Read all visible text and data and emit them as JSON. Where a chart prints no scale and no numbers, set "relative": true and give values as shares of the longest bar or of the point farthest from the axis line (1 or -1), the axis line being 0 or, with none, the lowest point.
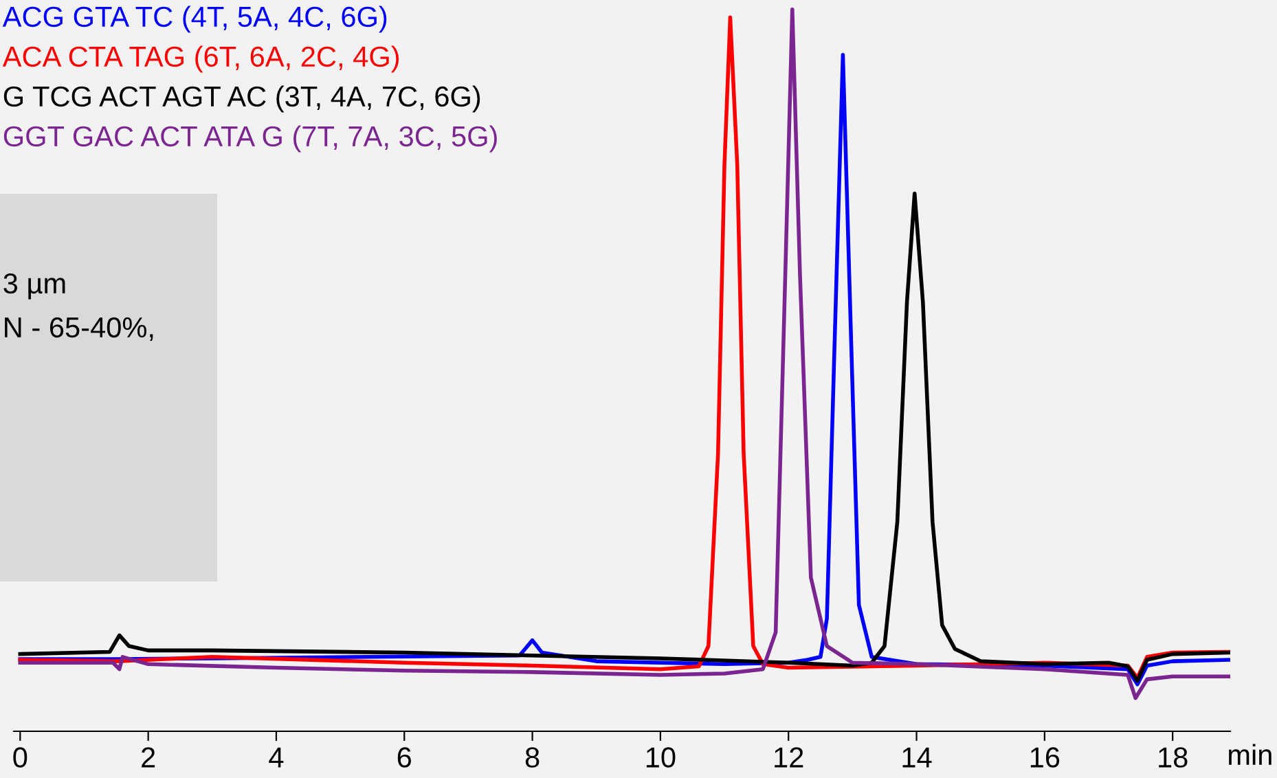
{
  "chart_data": {
    "type": "line",
    "relative": true,
    "xlabel": "min",
    "xlim": [
      -0.1,
      18.9
    ],
    "xticks": [
      0,
      2,
      4,
      6,
      8,
      10,
      12,
      14,
      16,
      18
    ],
    "grid": false,
    "legend": false,
    "marker": "none",
    "line_style": "solid",
    "annotations": [
      "3 µm",
      "N - 65-40%,"
    ],
    "series": [
      {
        "name": "ACG GTA TC (4T, 5A, 4C, 6G)",
        "color": "#0000ff",
        "x": [
          0,
          1.5,
          3,
          7.8,
          8.0,
          8.15,
          9,
          11,
          12,
          12.3,
          12.5,
          12.6,
          12.72,
          12.85,
          12.98,
          13.1,
          13.3,
          14,
          16,
          17.3,
          17.45,
          17.6,
          18,
          18.9
        ],
        "values": [
          0.1,
          0.1,
          0.101,
          0.105,
          0.126,
          0.109,
          0.097,
          0.093,
          0.095,
          0.099,
          0.103,
          0.156,
          0.537,
          0.937,
          0.537,
          0.175,
          0.103,
          0.093,
          0.091,
          0.086,
          0.065,
          0.091,
          0.097,
          0.099
        ]
      },
      {
        "name": "ACA CTA TAG (6T, 6A, 2C, 4G)",
        "color": "#ff0000",
        "x": [
          0,
          1.5,
          3,
          6,
          8,
          10,
          10.6,
          10.75,
          10.9,
          11.0,
          11.09,
          11.2,
          11.3,
          11.45,
          11.6,
          12,
          14,
          16,
          17.3,
          17.45,
          17.6,
          18,
          18.9
        ],
        "values": [
          0.099,
          0.097,
          0.103,
          0.095,
          0.091,
          0.086,
          0.09,
          0.118,
          0.385,
          0.785,
          0.989,
          0.785,
          0.385,
          0.118,
          0.093,
          0.088,
          0.091,
          0.095,
          0.091,
          0.074,
          0.103,
          0.109,
          0.11
        ]
      },
      {
        "name": "G TCG ACT AGT AC (3T, 4A, 7C, 6G)",
        "color": "#000000",
        "x": [
          0,
          1.4,
          1.55,
          1.7,
          2,
          3,
          6,
          8,
          10,
          12,
          13,
          13.3,
          13.5,
          13.7,
          13.85,
          13.97,
          14.1,
          14.25,
          14.4,
          14.6,
          15,
          16,
          17,
          17.3,
          17.45,
          17.6,
          18,
          18.9
        ],
        "values": [
          0.107,
          0.11,
          0.133,
          0.118,
          0.112,
          0.112,
          0.109,
          0.105,
          0.101,
          0.095,
          0.091,
          0.095,
          0.118,
          0.29,
          0.594,
          0.745,
          0.594,
          0.29,
          0.147,
          0.114,
          0.097,
          0.093,
          0.095,
          0.09,
          0.07,
          0.099,
          0.107,
          0.109
        ]
      },
      {
        "name": "GGT GAC ACT ATA G (7T, 7A, 3C, 5G)",
        "color": "#7b2590",
        "x": [
          0,
          1.45,
          1.55,
          1.6,
          2,
          4,
          6,
          8,
          10,
          11,
          11.6,
          11.8,
          11.95,
          12.06,
          12.18,
          12.35,
          12.6,
          13,
          14,
          16,
          17.3,
          17.42,
          17.6,
          18,
          18.9
        ],
        "values": [
          0.095,
          0.095,
          0.086,
          0.103,
          0.093,
          0.088,
          0.084,
          0.082,
          0.078,
          0.08,
          0.086,
          0.137,
          0.632,
          1.0,
          0.632,
          0.213,
          0.118,
          0.095,
          0.093,
          0.086,
          0.078,
          0.046,
          0.072,
          0.076,
          0.076
        ]
      }
    ]
  }
}
